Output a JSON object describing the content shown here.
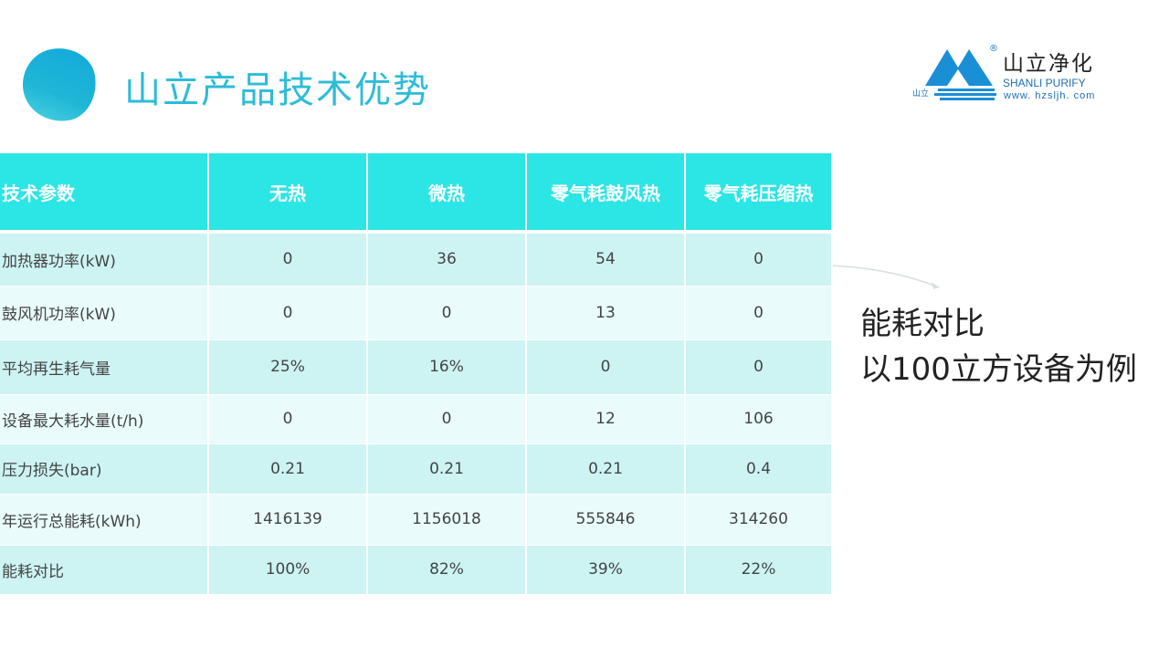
{
  "title": "山立产品技术优势",
  "logo": {
    "cn": "山立净化",
    "en": "SHANLI PURIFY",
    "url": "www. hzsljh. com",
    "small": "山立",
    "reg": "®",
    "colors": {
      "brand": "#1a8fd6"
    }
  },
  "table": {
    "headers": [
      "技术参数",
      "无热",
      "微热",
      "零气耗鼓风热",
      "零气耗压缩热"
    ],
    "rows": [
      [
        "加热器功率(kW)",
        "0",
        "36",
        "54",
        "0"
      ],
      [
        "鼓风机功率(kW)",
        "0",
        "0",
        "13",
        "0"
      ],
      [
        "平均再生耗气量",
        "25%",
        "16%",
        "0",
        "0"
      ],
      [
        "设备最大耗水量(t/h)",
        "0",
        "0",
        "12",
        "106"
      ],
      [
        "压力损失(bar)",
        "0.21",
        "0.21",
        "0.21",
        "0.4"
      ],
      [
        "年运行总能耗(kWh)",
        "1416139",
        "1156018",
        "555846",
        "314260"
      ],
      [
        "能耗对比",
        "100%",
        "82%",
        "39%",
        "22%"
      ]
    ],
    "colors": {
      "header": "#2ce5e5",
      "row_odd": "#cdf3f3",
      "row_even": "#e9fbfb"
    }
  },
  "side": {
    "line1": "能耗对比",
    "line2": "以100立方设备为例"
  }
}
